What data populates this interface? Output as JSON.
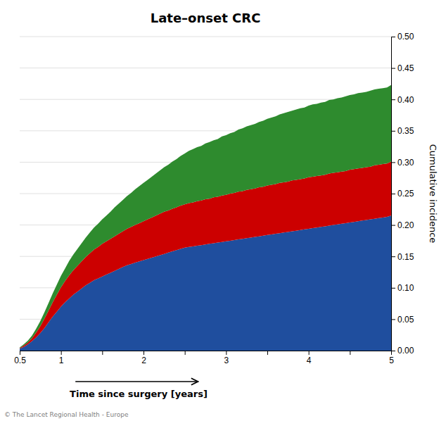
{
  "chart_data": {
    "type": "area",
    "stacked": true,
    "title": "Late–onset CRC",
    "xlabel": "Time since surgery [years]",
    "ylabel": "Cumulative incidence",
    "annotations": [
      "© The Lancet Regional Health - Europe"
    ],
    "grid": true,
    "xlim": [
      0.5,
      5.0
    ],
    "ylim": [
      0.0,
      0.5
    ],
    "yticks": [
      {
        "value": 0.0,
        "label": "0.00"
      },
      {
        "value": 0.05,
        "label": "0.05"
      },
      {
        "value": 0.1,
        "label": "0.10"
      },
      {
        "value": 0.15,
        "label": "0.15"
      },
      {
        "value": 0.2,
        "label": "0.20"
      },
      {
        "value": 0.25,
        "label": "0.25"
      },
      {
        "value": 0.3,
        "label": "0.30"
      },
      {
        "value": 0.35,
        "label": "0.35"
      },
      {
        "value": 0.4,
        "label": "0.40"
      },
      {
        "value": 0.45,
        "label": "0.45"
      },
      {
        "value": 0.5,
        "label": "0.50"
      }
    ],
    "xticks": [
      0.5,
      1,
      {
        "value": 1.5,
        "label": null
      },
      2,
      {
        "value": 2.5,
        "label": null
      },
      3,
      {
        "value": 3.5,
        "label": null
      },
      4,
      {
        "value": 4.5,
        "label": null
      },
      5
    ],
    "x": [
      0.5,
      0.55,
      0.6,
      0.65,
      0.7,
      0.75,
      0.8,
      0.85,
      0.9,
      0.95,
      1.0,
      1.05,
      1.1,
      1.15,
      1.2,
      1.25,
      1.3,
      1.35,
      1.4,
      1.45,
      1.5,
      1.55,
      1.6,
      1.65,
      1.7,
      1.75,
      1.8,
      1.85,
      1.9,
      1.95,
      2.0,
      2.05,
      2.1,
      2.15,
      2.2,
      2.25,
      2.3,
      2.35,
      2.4,
      2.45,
      2.5,
      2.55,
      2.6,
      2.65,
      2.7,
      2.75,
      2.8,
      2.85,
      2.9,
      2.95,
      3.0,
      3.05,
      3.1,
      3.15,
      3.2,
      3.25,
      3.3,
      3.35,
      3.4,
      3.45,
      3.5,
      3.55,
      3.6,
      3.65,
      3.7,
      3.75,
      3.8,
      3.85,
      3.9,
      3.95,
      4.0,
      4.05,
      4.1,
      4.15,
      4.2,
      4.25,
      4.3,
      4.35,
      4.4,
      4.45,
      4.5,
      4.55,
      4.6,
      4.65,
      4.7,
      4.75,
      4.8,
      4.85,
      4.9,
      4.95,
      5.0
    ],
    "series": [
      {
        "color": "#1f4e9e",
        "values": [
          0.003,
          0.006,
          0.01,
          0.015,
          0.021,
          0.028,
          0.036,
          0.045,
          0.054,
          0.062,
          0.07,
          0.077,
          0.083,
          0.089,
          0.094,
          0.099,
          0.104,
          0.108,
          0.112,
          0.115,
          0.118,
          0.121,
          0.124,
          0.127,
          0.13,
          0.133,
          0.136,
          0.138,
          0.14,
          0.142,
          0.144,
          0.146,
          0.148,
          0.15,
          0.152,
          0.154,
          0.156,
          0.158,
          0.16,
          0.162,
          0.164,
          0.165,
          0.166,
          0.167,
          0.168,
          0.169,
          0.17,
          0.171,
          0.172,
          0.173,
          0.174,
          0.175,
          0.176,
          0.177,
          0.178,
          0.179,
          0.18,
          0.181,
          0.182,
          0.183,
          0.184,
          0.185,
          0.186,
          0.187,
          0.188,
          0.189,
          0.19,
          0.191,
          0.192,
          0.193,
          0.194,
          0.195,
          0.196,
          0.197,
          0.198,
          0.199,
          0.2,
          0.201,
          0.202,
          0.203,
          0.204,
          0.205,
          0.206,
          0.207,
          0.208,
          0.209,
          0.21,
          0.211,
          0.212,
          0.213,
          0.215
        ]
      },
      {
        "color": "#cc0000",
        "values": [
          0.001,
          0.002,
          0.003,
          0.005,
          0.008,
          0.011,
          0.015,
          0.019,
          0.023,
          0.027,
          0.031,
          0.034,
          0.037,
          0.039,
          0.041,
          0.043,
          0.045,
          0.047,
          0.049,
          0.05,
          0.052,
          0.053,
          0.054,
          0.055,
          0.056,
          0.057,
          0.058,
          0.059,
          0.06,
          0.061,
          0.062,
          0.063,
          0.064,
          0.065,
          0.066,
          0.067,
          0.067,
          0.068,
          0.068,
          0.069,
          0.069,
          0.07,
          0.07,
          0.071,
          0.071,
          0.072,
          0.072,
          0.073,
          0.073,
          0.074,
          0.074,
          0.075,
          0.075,
          0.076,
          0.076,
          0.077,
          0.077,
          0.077,
          0.078,
          0.078,
          0.079,
          0.079,
          0.079,
          0.08,
          0.08,
          0.08,
          0.081,
          0.081,
          0.081,
          0.081,
          0.082,
          0.082,
          0.082,
          0.082,
          0.082,
          0.083,
          0.083,
          0.083,
          0.083,
          0.083,
          0.084,
          0.084,
          0.084,
          0.084,
          0.084,
          0.084,
          0.085,
          0.085,
          0.085,
          0.085,
          0.086
        ]
      },
      {
        "color": "#2e8b2e",
        "values": [
          0.001,
          0.002,
          0.003,
          0.004,
          0.006,
          0.008,
          0.01,
          0.012,
          0.014,
          0.016,
          0.018,
          0.02,
          0.023,
          0.025,
          0.027,
          0.029,
          0.031,
          0.033,
          0.035,
          0.037,
          0.039,
          0.041,
          0.043,
          0.046,
          0.048,
          0.05,
          0.052,
          0.054,
          0.057,
          0.059,
          0.061,
          0.063,
          0.065,
          0.067,
          0.069,
          0.071,
          0.073,
          0.075,
          0.077,
          0.079,
          0.081,
          0.083,
          0.085,
          0.086,
          0.087,
          0.089,
          0.09,
          0.091,
          0.092,
          0.094,
          0.095,
          0.096,
          0.097,
          0.099,
          0.1,
          0.101,
          0.102,
          0.103,
          0.104,
          0.105,
          0.106,
          0.107,
          0.108,
          0.109,
          0.11,
          0.111,
          0.111,
          0.112,
          0.113,
          0.113,
          0.114,
          0.115,
          0.115,
          0.116,
          0.116,
          0.117,
          0.117,
          0.118,
          0.118,
          0.119,
          0.119,
          0.119,
          0.12,
          0.12,
          0.12,
          0.121,
          0.121,
          0.121,
          0.121,
          0.121,
          0.122
        ]
      }
    ]
  }
}
